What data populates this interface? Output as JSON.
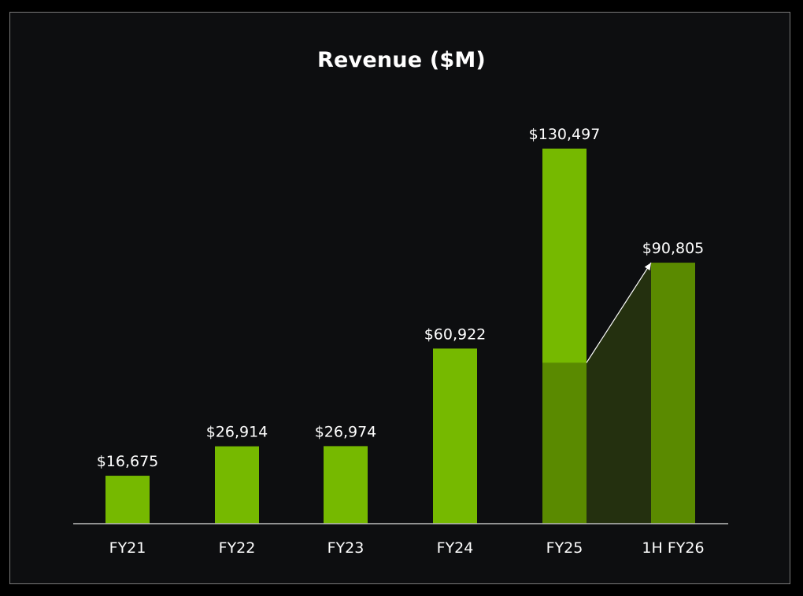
{
  "chart_data": {
    "type": "bar",
    "title": "Revenue ($M)",
    "categories": [
      "FY21",
      "FY22",
      "FY23",
      "FY24",
      "FY25",
      "1H FY26"
    ],
    "values": [
      16675,
      26914,
      26974,
      60922,
      130497,
      90805
    ],
    "value_labels": [
      "$16,675",
      "$26,914",
      "$26,974",
      "$60,922",
      "$130,497",
      "$90,805"
    ],
    "comparison": {
      "from_category": "FY25",
      "to_category": "1H FY26",
      "first_half_fy25_value": 56000
    },
    "ylim": [
      0,
      130497
    ],
    "xlabel": "",
    "ylabel": "",
    "grid": false,
    "colors": {
      "bar": "#76b900",
      "bar_dark": "#5a8a00",
      "shade": "#24300f",
      "text": "#ffffff",
      "background": "#0d0e10",
      "axis": "#bdbdbd"
    }
  }
}
